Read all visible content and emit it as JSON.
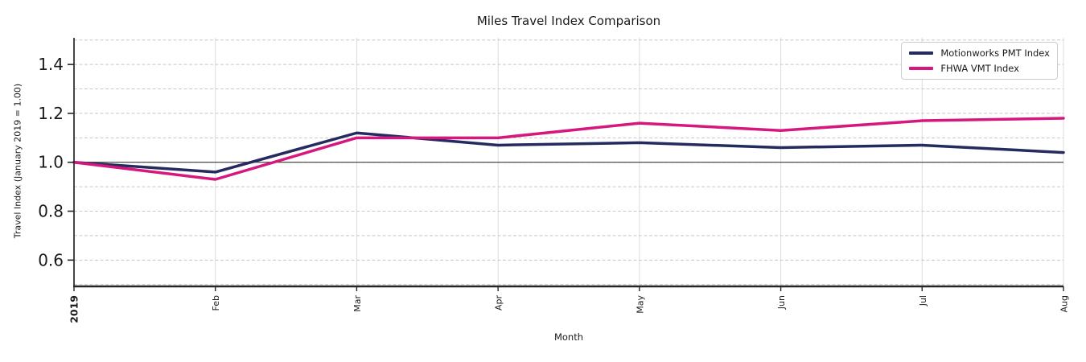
{
  "chart_data": {
    "type": "line",
    "title": "Miles Travel Index Comparison",
    "xlabel": "Month",
    "ylabel": "Travel Index (January 2019 = 1.00)",
    "x_tick_labels": [
      "2019",
      "Feb",
      "Mar",
      "Apr",
      "May",
      "Jun",
      "Jul",
      "Aug"
    ],
    "bold_x_tick_labels": [
      "2019"
    ],
    "y_ticks": [
      0.6,
      0.8,
      1.0,
      1.2,
      1.4
    ],
    "ylim": [
      0.4925,
      1.509
    ],
    "grid_y_step": 0.1,
    "reference_line_y": 1.0,
    "grid": true,
    "legend_position": "upper right",
    "series": [
      {
        "name": "Motionworks PMT Index",
        "color": "#262b5f",
        "values": [
          1.0,
          0.96,
          1.12,
          1.07,
          1.08,
          1.06,
          1.07,
          1.04
        ]
      },
      {
        "name": "FHWA VMT Index",
        "color": "#d6187e",
        "values": [
          1.0,
          0.93,
          1.1,
          1.1,
          1.16,
          1.13,
          1.17,
          1.18
        ]
      }
    ],
    "colors": {
      "grid_horizontal": "#c8c8c8",
      "grid_vertical": "#dcdcdc",
      "spine": "#262626",
      "reference_line": "#3a3a3a",
      "text": "#1a1a1a"
    }
  }
}
